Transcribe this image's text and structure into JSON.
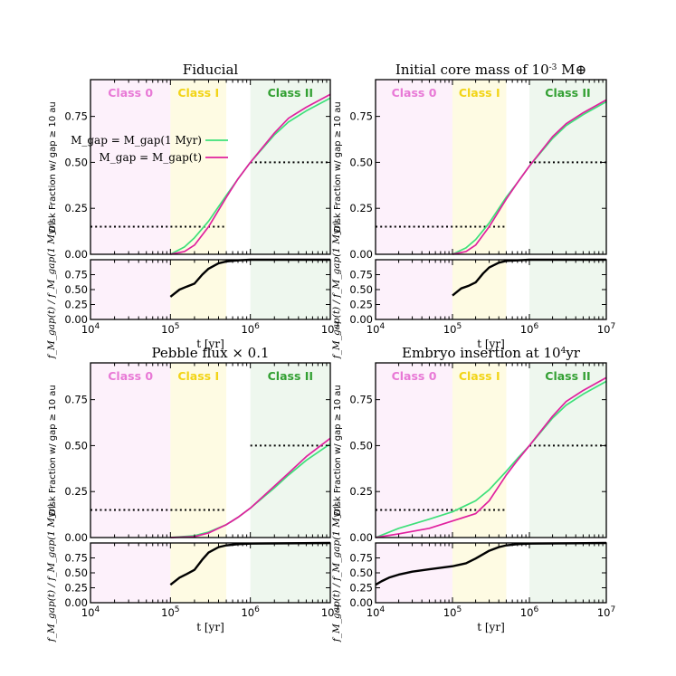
{
  "colors": {
    "class0_bg": "#fdf1fb",
    "class1_bg": "#fefbe3",
    "class2_bg": "#eef7ee",
    "class0_text": "#e879d6",
    "class1_text": "#f2d416",
    "class2_text": "#33a033",
    "green_line": "#3ee07a",
    "magenta_line": "#e0209e",
    "ratio_line": "#000000",
    "threshold": "#000000"
  },
  "labels": {
    "class0": "Class 0",
    "class1": "Class I",
    "class2": "Class II",
    "ylabel_top": "Disk Fraction w/ gap ≥ 10 au",
    "ylabel_bottom": "f_M_gap(t) / f_M_gap(1 Myr)",
    "xlabel": "t [yr]",
    "legend_green": "M_gap = M_gap(1 Myr)",
    "legend_magenta": "M_gap = M_gap(t)"
  },
  "chart_data": [
    {
      "type": "line",
      "title": "Fiducial",
      "xscale": "log",
      "xlim": [
        10000,
        10000000
      ],
      "ylim_top": [
        0,
        0.95
      ],
      "ylim_bottom": [
        0,
        1.0
      ],
      "yticks_top": [
        "0.00",
        "0.25",
        "0.50",
        "0.75"
      ],
      "yticks_bottom": [
        "0.00",
        "0.25",
        "0.50",
        "0.75"
      ],
      "xticks": [
        "10^4",
        "10^5",
        "10^6",
        "10^7"
      ],
      "class_regions": {
        "class0": [
          10000,
          100000
        ],
        "class1": [
          100000,
          500000
        ],
        "class2": [
          1000000,
          10000000
        ]
      },
      "thresholds": [
        {
          "x": [
            10000,
            500000
          ],
          "y": 0.15
        },
        {
          "x": [
            1000000,
            10000000
          ],
          "y": 0.5
        }
      ],
      "legend": "upper-left",
      "series": [
        {
          "name": "M_gap = M_gap(1 Myr)",
          "color": "green",
          "x": [
            100000,
            150000,
            200000,
            300000,
            500000,
            700000,
            1000000,
            2000000,
            3000000,
            5000000,
            10000000
          ],
          "y": [
            0.0,
            0.04,
            0.09,
            0.18,
            0.32,
            0.41,
            0.5,
            0.65,
            0.72,
            0.78,
            0.85
          ]
        },
        {
          "name": "M_gap = M_gap(t)",
          "color": "magenta",
          "x": [
            100000,
            150000,
            200000,
            300000,
            500000,
            700000,
            1000000,
            2000000,
            3000000,
            5000000,
            10000000
          ],
          "y": [
            0.0,
            0.015,
            0.05,
            0.15,
            0.31,
            0.41,
            0.5,
            0.66,
            0.74,
            0.8,
            0.87
          ]
        },
        {
          "name": "ratio",
          "color": "black",
          "panel": "bottom",
          "x": [
            100000,
            130000,
            160000,
            200000,
            250000,
            300000,
            400000,
            500000,
            700000,
            1000000,
            10000000
          ],
          "y": [
            0.38,
            0.5,
            0.55,
            0.6,
            0.75,
            0.85,
            0.94,
            0.97,
            0.99,
            1.0,
            1.0
          ]
        }
      ]
    },
    {
      "type": "line",
      "title": "Initial core mass of 10^-3 M⊕",
      "xscale": "log",
      "xlim": [
        10000,
        10000000
      ],
      "ylim_top": [
        0,
        0.95
      ],
      "ylim_bottom": [
        0,
        1.0
      ],
      "yticks_top": [
        "0.00",
        "0.25",
        "0.50",
        "0.75"
      ],
      "yticks_bottom": [
        "0.00",
        "0.25",
        "0.50",
        "0.75"
      ],
      "xticks": [
        "10^4",
        "10^5",
        "10^6",
        "10^7"
      ],
      "class_regions": {
        "class0": [
          10000,
          100000
        ],
        "class1": [
          100000,
          500000
        ],
        "class2": [
          1000000,
          10000000
        ]
      },
      "thresholds": [
        {
          "x": [
            10000,
            500000
          ],
          "y": 0.15
        },
        {
          "x": [
            1000000,
            10000000
          ],
          "y": 0.5
        }
      ],
      "series": [
        {
          "name": "green",
          "color": "green",
          "x": [
            100000,
            150000,
            200000,
            300000,
            500000,
            700000,
            1000000,
            2000000,
            3000000,
            5000000,
            10000000
          ],
          "y": [
            0.0,
            0.035,
            0.08,
            0.17,
            0.31,
            0.39,
            0.48,
            0.63,
            0.7,
            0.76,
            0.83
          ]
        },
        {
          "name": "magenta",
          "color": "magenta",
          "x": [
            100000,
            150000,
            200000,
            300000,
            500000,
            700000,
            1000000,
            2000000,
            3000000,
            5000000,
            10000000
          ],
          "y": [
            0.0,
            0.015,
            0.05,
            0.15,
            0.3,
            0.39,
            0.48,
            0.64,
            0.71,
            0.77,
            0.84
          ]
        },
        {
          "name": "ratio",
          "color": "black",
          "panel": "bottom",
          "x": [
            100000,
            130000,
            160000,
            200000,
            250000,
            300000,
            400000,
            500000,
            700000,
            1000000,
            10000000
          ],
          "y": [
            0.4,
            0.52,
            0.56,
            0.62,
            0.77,
            0.87,
            0.95,
            0.98,
            0.99,
            1.0,
            1.0
          ]
        }
      ]
    },
    {
      "type": "line",
      "title": "Pebble flux × 0.1",
      "xscale": "log",
      "xlim": [
        10000,
        10000000
      ],
      "ylim_top": [
        0,
        0.95
      ],
      "ylim_bottom": [
        0,
        1.0
      ],
      "yticks_top": [
        "0.00",
        "0.25",
        "0.50",
        "0.75"
      ],
      "yticks_bottom": [
        "0.00",
        "0.25",
        "0.50",
        "0.75"
      ],
      "xticks": [
        "10^4",
        "10^5",
        "10^6",
        "10^7"
      ],
      "class_regions": {
        "class0": [
          10000,
          100000
        ],
        "class1": [
          100000,
          500000
        ],
        "class2": [
          1000000,
          10000000
        ]
      },
      "thresholds": [
        {
          "x": [
            10000,
            500000
          ],
          "y": 0.15
        },
        {
          "x": [
            1000000,
            10000000
          ],
          "y": 0.5
        }
      ],
      "series": [
        {
          "name": "green",
          "color": "green",
          "x": [
            100000,
            200000,
            300000,
            500000,
            700000,
            1000000,
            2000000,
            3000000,
            5000000,
            10000000
          ],
          "y": [
            0.0,
            0.01,
            0.03,
            0.07,
            0.11,
            0.16,
            0.27,
            0.34,
            0.42,
            0.51
          ]
        },
        {
          "name": "magenta",
          "color": "magenta",
          "x": [
            100000,
            200000,
            300000,
            500000,
            700000,
            1000000,
            2000000,
            3000000,
            5000000,
            10000000
          ],
          "y": [
            0.0,
            0.005,
            0.025,
            0.07,
            0.11,
            0.16,
            0.28,
            0.35,
            0.44,
            0.54
          ]
        },
        {
          "name": "ratio",
          "color": "black",
          "panel": "bottom",
          "x": [
            100000,
            130000,
            160000,
            200000,
            250000,
            300000,
            400000,
            500000,
            700000,
            1000000,
            10000000
          ],
          "y": [
            0.3,
            0.42,
            0.48,
            0.55,
            0.72,
            0.84,
            0.93,
            0.96,
            0.98,
            0.99,
            1.0
          ]
        }
      ]
    },
    {
      "type": "line",
      "title": "Embryo insertion at 10^4yr",
      "xscale": "log",
      "xlim": [
        10000,
        10000000
      ],
      "ylim_top": [
        0,
        0.95
      ],
      "ylim_bottom": [
        0,
        1.0
      ],
      "yticks_top": [
        "0.00",
        "0.25",
        "0.50",
        "0.75"
      ],
      "yticks_bottom": [
        "0.00",
        "0.25",
        "0.50",
        "0.75"
      ],
      "xticks": [
        "10^4",
        "10^5",
        "10^6",
        "10^7"
      ],
      "class_regions": {
        "class0": [
          10000,
          100000
        ],
        "class1": [
          100000,
          500000
        ],
        "class2": [
          1000000,
          10000000
        ]
      },
      "thresholds": [
        {
          "x": [
            10000,
            500000
          ],
          "y": 0.15
        },
        {
          "x": [
            1000000,
            10000000
          ],
          "y": 0.5
        }
      ],
      "series": [
        {
          "name": "green",
          "color": "green",
          "x": [
            10000,
            20000,
            50000,
            100000,
            200000,
            300000,
            500000,
            700000,
            1000000,
            2000000,
            3000000,
            5000000,
            10000000
          ],
          "y": [
            0.0,
            0.05,
            0.1,
            0.14,
            0.2,
            0.26,
            0.36,
            0.43,
            0.5,
            0.65,
            0.72,
            0.78,
            0.85
          ]
        },
        {
          "name": "magenta",
          "color": "magenta",
          "x": [
            10000,
            20000,
            50000,
            100000,
            200000,
            300000,
            500000,
            700000,
            1000000,
            2000000,
            3000000,
            5000000,
            10000000
          ],
          "y": [
            0.0,
            0.02,
            0.05,
            0.09,
            0.13,
            0.2,
            0.34,
            0.42,
            0.5,
            0.66,
            0.74,
            0.8,
            0.87
          ]
        },
        {
          "name": "ratio",
          "color": "black",
          "panel": "bottom",
          "x": [
            10000,
            12000,
            15000,
            20000,
            30000,
            50000,
            100000,
            150000,
            200000,
            300000,
            400000,
            500000,
            700000,
            1000000,
            10000000
          ],
          "y": [
            0.3,
            0.36,
            0.42,
            0.47,
            0.52,
            0.56,
            0.61,
            0.66,
            0.74,
            0.87,
            0.93,
            0.96,
            0.98,
            0.99,
            1.0
          ]
        }
      ]
    }
  ]
}
